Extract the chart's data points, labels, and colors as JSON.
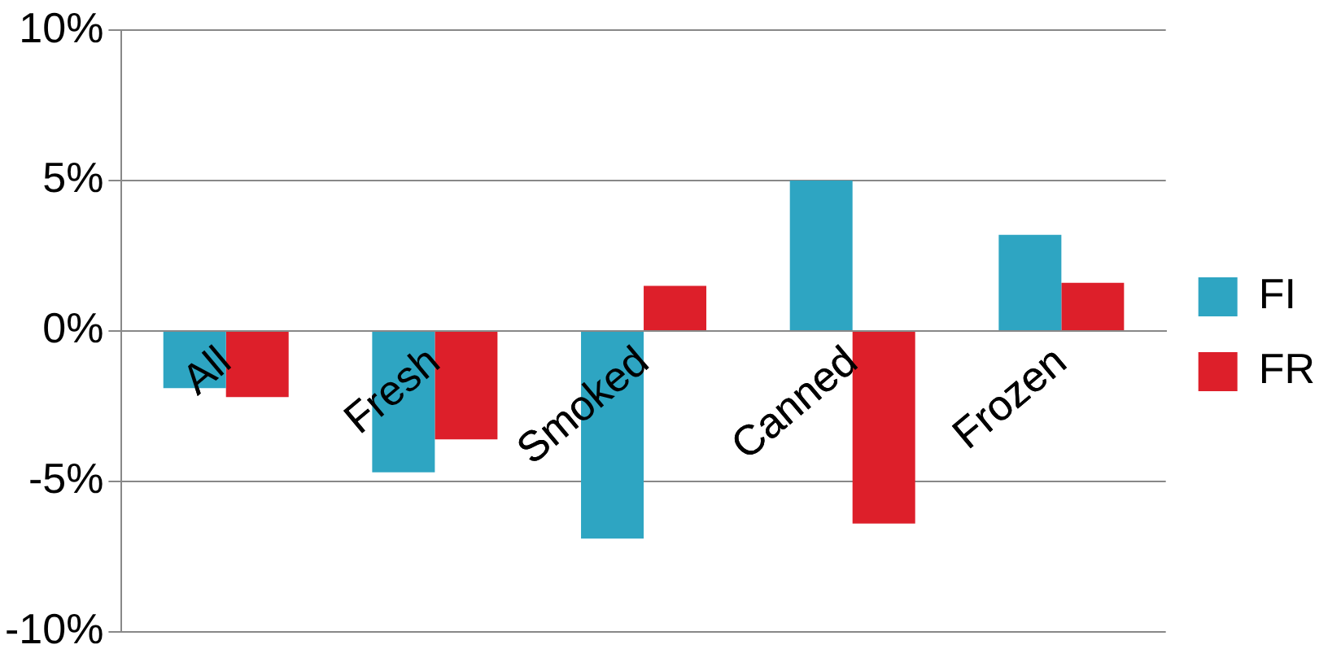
{
  "chart_data": {
    "type": "bar",
    "categories": [
      "All",
      "Fresh",
      "Smoked",
      "Canned",
      "Frozen"
    ],
    "series": [
      {
        "name": "FI",
        "color": "#2ea5c2",
        "values": [
          -1.9,
          -4.7,
          -6.9,
          5.0,
          3.2
        ]
      },
      {
        "name": "FR",
        "color": "#dd1f2a",
        "values": [
          -2.2,
          -3.6,
          1.5,
          -6.4,
          1.6
        ]
      }
    ],
    "ylim": [
      -10,
      10
    ],
    "yticks": [
      {
        "value": -10,
        "label": "-10%"
      },
      {
        "value": -5,
        "label": "-5%"
      },
      {
        "value": 0,
        "label": "0%"
      },
      {
        "value": 5,
        "label": "5%"
      },
      {
        "value": 10,
        "label": "10%"
      }
    ],
    "grid": "y",
    "legend": "right"
  }
}
